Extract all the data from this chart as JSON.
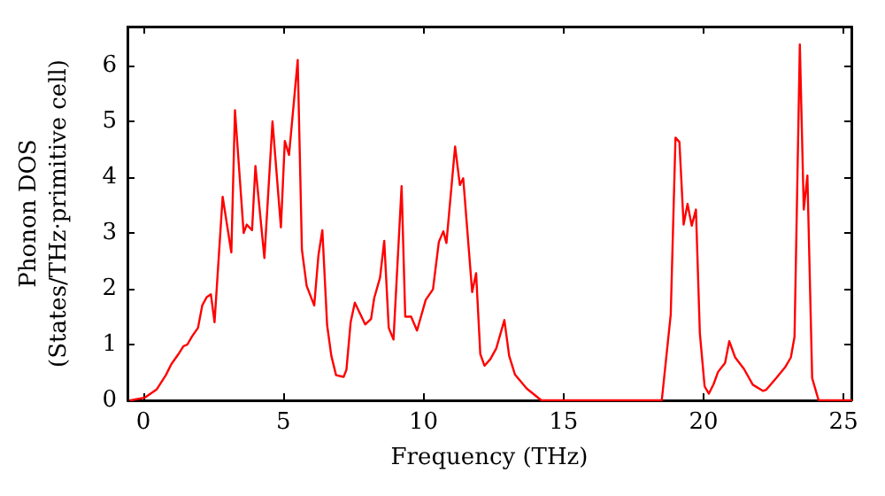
{
  "chart_data": {
    "type": "line",
    "xlabel": "Frequency (THz)",
    "ylabel": "Phonon DOS\n(States/THz·primitive cell)",
    "x": [
      -0.46,
      0.06,
      0.48,
      0.8,
      1.0,
      1.28,
      1.43,
      1.57,
      1.74,
      1.95,
      2.1,
      2.26,
      2.41,
      2.54,
      2.83,
      3.14,
      3.27,
      3.58,
      3.69,
      3.88,
      4.0,
      4.32,
      4.61,
      4.91,
      5.05,
      5.2,
      5.51,
      5.66,
      5.83,
      6.1,
      6.25,
      6.39,
      6.56,
      6.71,
      6.88,
      7.15,
      7.25,
      7.4,
      7.55,
      7.92,
      8.13,
      8.24,
      8.45,
      8.6,
      8.76,
      8.93,
      9.22,
      9.35,
      9.56,
      9.77,
      10.08,
      10.34,
      10.55,
      10.71,
      10.82,
      11.13,
      11.3,
      11.42,
      11.74,
      11.88,
      12.03,
      12.18,
      12.39,
      12.6,
      12.89,
      13.06,
      13.27,
      13.69,
      14.21,
      18.51,
      18.83,
      19.0,
      19.14,
      19.29,
      19.43,
      19.58,
      19.73,
      19.87,
      20.04,
      20.19,
      20.36,
      20.52,
      20.77,
      20.92,
      21.13,
      21.45,
      21.76,
      22.12,
      22.24,
      22.6,
      22.91,
      23.12,
      23.25,
      23.44,
      23.58,
      23.71,
      23.88,
      24.11,
      25.28
    ],
    "series": [
      {
        "color": "#ff0000",
        "values": [
          0,
          0.05,
          0.2,
          0.45,
          0.65,
          0.85,
          0.97,
          1.0,
          1.15,
          1.3,
          1.7,
          1.85,
          1.9,
          1.4,
          3.65,
          2.65,
          5.2,
          3.0,
          3.15,
          3.05,
          4.2,
          2.55,
          5.0,
          3.1,
          4.65,
          4.4,
          6.1,
          2.7,
          2.05,
          1.7,
          2.6,
          3.05,
          1.35,
          0.8,
          0.45,
          0.42,
          0.55,
          1.4,
          1.75,
          1.36,
          1.46,
          1.83,
          2.2,
          2.86,
          1.3,
          1.09,
          3.84,
          1.5,
          1.5,
          1.25,
          1.8,
          1.99,
          2.84,
          3.03,
          2.82,
          4.55,
          3.86,
          3.98,
          1.94,
          2.28,
          0.83,
          0.62,
          0.74,
          0.93,
          1.44,
          0.8,
          0.46,
          0.21,
          0,
          0,
          1.54,
          4.71,
          4.63,
          3.15,
          3.52,
          3.13,
          3.42,
          1.2,
          0.25,
          0.12,
          0.29,
          0.51,
          0.67,
          1.06,
          0.77,
          0.56,
          0.28,
          0.17,
          0.19,
          0.4,
          0.59,
          0.77,
          1.14,
          6.38,
          3.42,
          4.03,
          0.4,
          0,
          0
        ]
      }
    ],
    "xlim": [
      -0.57,
      25.28
    ],
    "xticks": [
      0,
      5,
      10,
      15,
      20,
      25
    ],
    "ylim": [
      0,
      6.7
    ],
    "yticks": [
      0,
      1,
      2,
      3,
      4,
      5,
      6
    ],
    "grid": false,
    "marker": "none",
    "line_style": "solid"
  }
}
